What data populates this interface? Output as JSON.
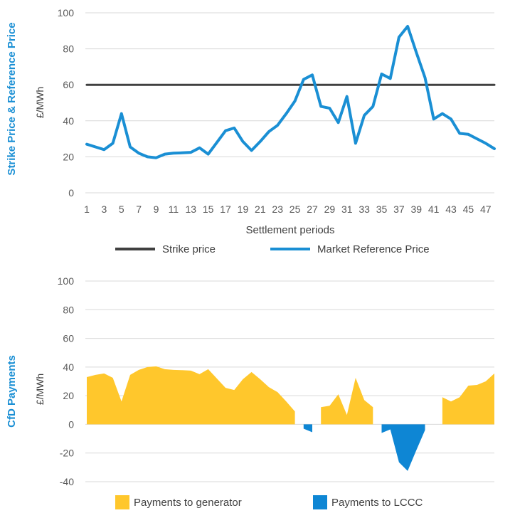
{
  "chart_data": [
    {
      "type": "line",
      "ylabel": "Strike Price & Reference Price",
      "unit_label": "£/MWh",
      "xlabel": "Settlement periods",
      "ylim": [
        0,
        100
      ],
      "yticks": [
        0,
        20,
        40,
        60,
        80,
        100
      ],
      "x": [
        1,
        2,
        3,
        4,
        5,
        6,
        7,
        8,
        9,
        10,
        11,
        12,
        13,
        14,
        15,
        16,
        17,
        18,
        19,
        20,
        21,
        22,
        23,
        24,
        25,
        26,
        27,
        28,
        29,
        30,
        31,
        32,
        33,
        34,
        35,
        36,
        37,
        38,
        39,
        40,
        41,
        42,
        43,
        44,
        45,
        46,
        47,
        48
      ],
      "xticks": [
        1,
        3,
        5,
        7,
        9,
        11,
        13,
        15,
        17,
        19,
        21,
        23,
        25,
        27,
        29,
        31,
        33,
        35,
        37,
        39,
        41,
        43,
        45,
        47
      ],
      "grid": "horizontal",
      "series": [
        {
          "name": "Strike price",
          "color": "#404040",
          "values": [
            60,
            60,
            60,
            60,
            60,
            60,
            60,
            60,
            60,
            60,
            60,
            60,
            60,
            60,
            60,
            60,
            60,
            60,
            60,
            60,
            60,
            60,
            60,
            60,
            60,
            60,
            60,
            60,
            60,
            60,
            60,
            60,
            60,
            60,
            60,
            60,
            60,
            60,
            60,
            60,
            60,
            60,
            60,
            60,
            60,
            60,
            60,
            60
          ]
        },
        {
          "name": "Market Reference Price",
          "color": "#1a8fd4",
          "values": [
            27,
            25.5,
            24,
            27.5,
            44,
            25.5,
            22,
            20,
            19.5,
            21.5,
            22,
            22.2,
            22.5,
            25,
            21.5,
            28,
            34.5,
            36,
            28.5,
            23.5,
            28.5,
            34,
            37.5,
            44,
            51,
            63,
            65.5,
            48,
            47,
            39,
            53.5,
            27.5,
            43,
            48,
            66,
            63.5,
            86.5,
            92.5,
            78,
            64,
            41,
            44,
            41,
            33,
            32.5,
            30,
            27.5,
            24.5
          ]
        }
      ],
      "legend": "bottom"
    },
    {
      "type": "area",
      "ylabel": "CfD Payments",
      "unit_label": "£/MWh",
      "ylim": [
        -40,
        100
      ],
      "yticks": [
        -40,
        -20,
        0,
        20,
        40,
        60,
        80,
        100
      ],
      "x": [
        1,
        2,
        3,
        4,
        5,
        6,
        7,
        8,
        9,
        10,
        11,
        12,
        13,
        14,
        15,
        16,
        17,
        18,
        19,
        20,
        21,
        22,
        23,
        24,
        25,
        26,
        27,
        28,
        29,
        30,
        31,
        32,
        33,
        34,
        35,
        36,
        37,
        38,
        39,
        40,
        41,
        42,
        43,
        44,
        45,
        46,
        47,
        48
      ],
      "grid": "horizontal",
      "series": [
        {
          "name": "Payments to generator",
          "color": "#ffc72c",
          "values": [
            33,
            34.5,
            35.5,
            32.5,
            16,
            34.5,
            38,
            40,
            40.5,
            38.5,
            38,
            37.8,
            37.5,
            35,
            38.5,
            32,
            25.5,
            24,
            31.5,
            36.5,
            31.5,
            26,
            22.5,
            16,
            9,
            0,
            0,
            12,
            13,
            21,
            6.5,
            32.5,
            17,
            12,
            0,
            0,
            0,
            0,
            0,
            0,
            0,
            19,
            16,
            19,
            27,
            27.5,
            30,
            35.5
          ]
        },
        {
          "name": "Payments to LCCC",
          "color": "#0e86d4",
          "values": [
            0,
            0,
            0,
            0,
            0,
            0,
            0,
            0,
            0,
            0,
            0,
            0,
            0,
            0,
            0,
            0,
            0,
            0,
            0,
            0,
            0,
            0,
            0,
            0,
            0,
            -3,
            -5.5,
            0,
            0,
            0,
            0,
            0,
            0,
            0,
            -6,
            -3.5,
            -26.5,
            -32.5,
            -18,
            -4,
            0,
            0,
            0,
            0,
            0,
            0,
            0,
            0
          ]
        }
      ],
      "legend": "bottom"
    }
  ]
}
